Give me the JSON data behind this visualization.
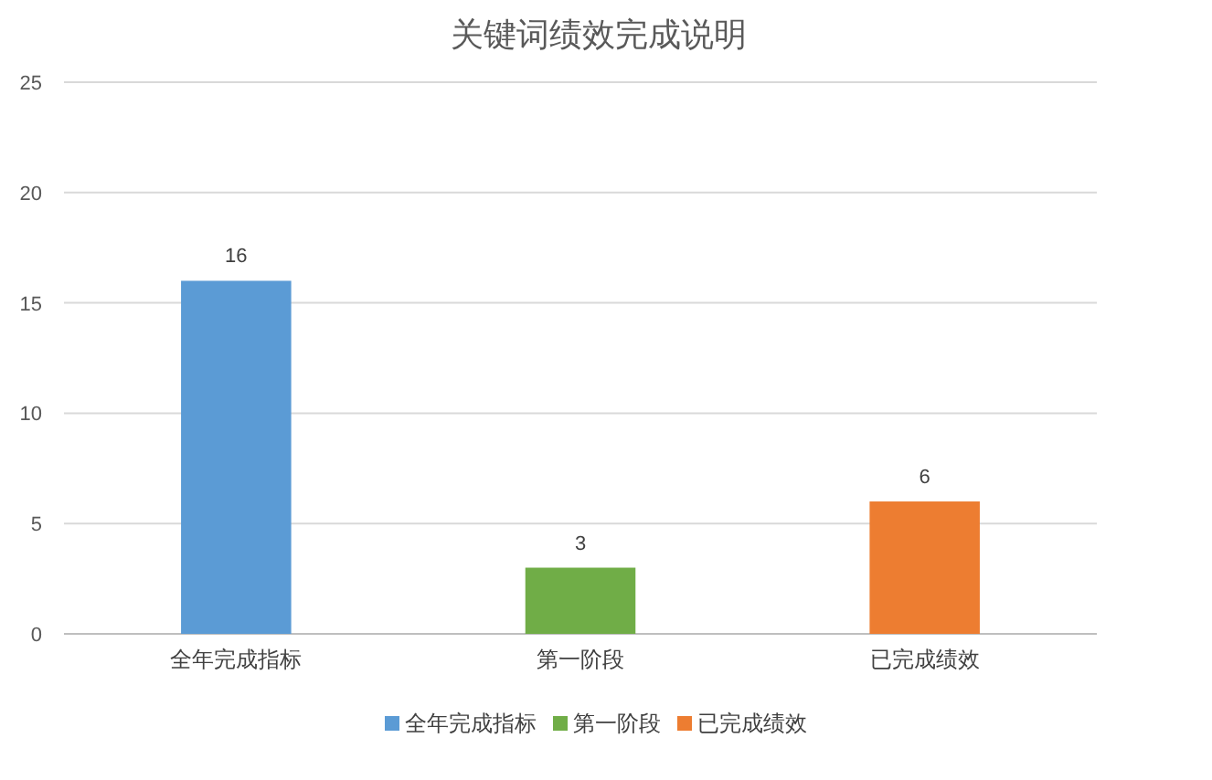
{
  "chart_data": {
    "type": "bar",
    "title": "关键词绩效完成说明",
    "categories": [
      "全年完成指标",
      "第一阶段",
      "已完成绩效"
    ],
    "series": [
      {
        "name": "全年完成指标",
        "color": "#5b9bd5",
        "values": [
          16,
          null,
          null
        ]
      },
      {
        "name": "第一阶段",
        "color": "#70ad47",
        "values": [
          null,
          3,
          null
        ]
      },
      {
        "name": "已完成绩效",
        "color": "#ed7d31",
        "values": [
          null,
          null,
          6
        ]
      }
    ],
    "ylim": [
      0,
      25
    ],
    "yticks": [
      0,
      5,
      10,
      15,
      20,
      25
    ],
    "grid": "y",
    "legend": "bottom",
    "data_labels": true
  }
}
